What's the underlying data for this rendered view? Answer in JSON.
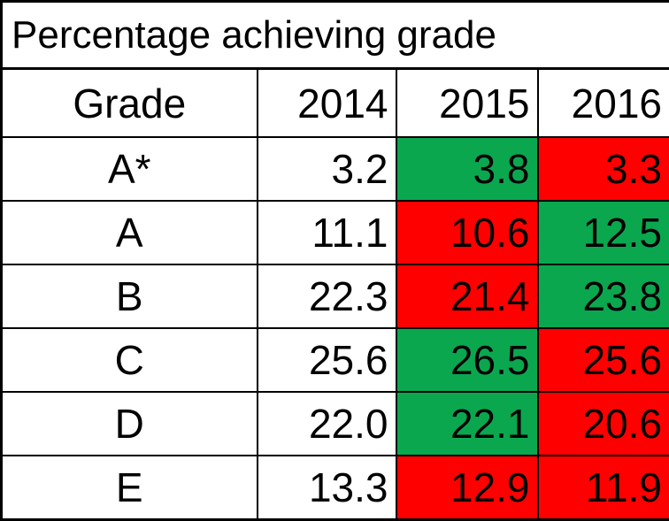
{
  "table": {
    "title": "Percentage achieving grade",
    "headers": {
      "grade": "Grade",
      "years": [
        "2014",
        "2015",
        "2016"
      ]
    },
    "rows": [
      {
        "grade": "A*",
        "values": [
          "3.2",
          "3.8",
          "3.3"
        ],
        "highlights": [
          "none",
          "green",
          "red"
        ]
      },
      {
        "grade": "A",
        "values": [
          "11.1",
          "10.6",
          "12.5"
        ],
        "highlights": [
          "none",
          "red",
          "green"
        ]
      },
      {
        "grade": "B",
        "values": [
          "22.3",
          "21.4",
          "23.8"
        ],
        "highlights": [
          "none",
          "red",
          "green"
        ]
      },
      {
        "grade": "C",
        "values": [
          "25.6",
          "26.5",
          "25.6"
        ],
        "highlights": [
          "none",
          "green",
          "red"
        ]
      },
      {
        "grade": "D",
        "values": [
          "22.0",
          "22.1",
          "20.6"
        ],
        "highlights": [
          "none",
          "green",
          "red"
        ]
      },
      {
        "grade": "E",
        "values": [
          "13.3",
          "12.9",
          "11.9"
        ],
        "highlights": [
          "none",
          "red",
          "red"
        ]
      }
    ],
    "colors": {
      "increase": "#0aa74f",
      "decrease": "#ff0000"
    }
  }
}
